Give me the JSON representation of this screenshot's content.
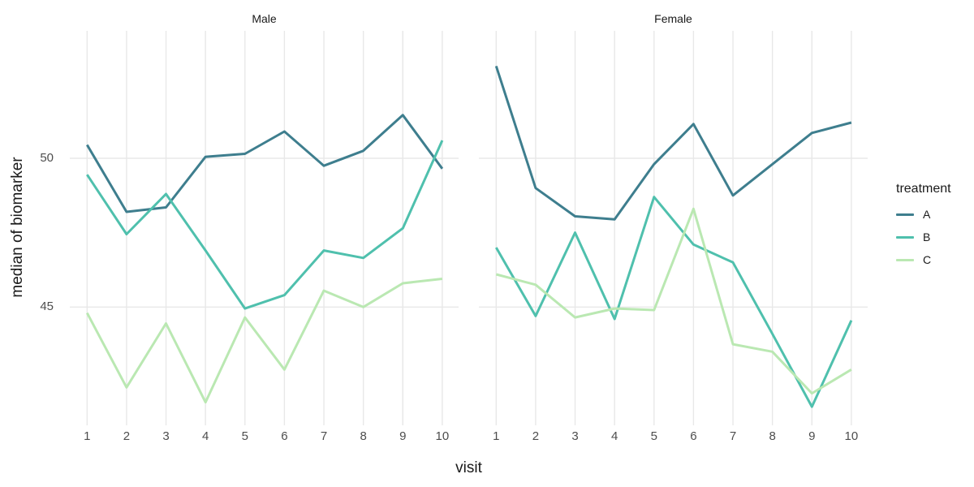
{
  "chart_data": {
    "type": "line",
    "x": [
      1,
      2,
      3,
      4,
      5,
      6,
      7,
      8,
      9,
      10
    ],
    "xlabel": "visit",
    "ylabel": "median of biomarker",
    "yticks": [
      45,
      50
    ],
    "ylim": [
      41.0,
      54.3
    ],
    "grid": true,
    "legend": {
      "title": "treatment",
      "position": "right",
      "entries": [
        "A",
        "B",
        "C"
      ]
    },
    "series_colors": {
      "A": "#3e7e8e",
      "B": "#4fc0ad",
      "C": "#bae8b2"
    },
    "grid_color": "#e8e8e8",
    "facets": [
      {
        "label": "Male",
        "series": [
          {
            "name": "A",
            "values": [
              50.45,
              48.2,
              48.35,
              50.05,
              50.15,
              50.9,
              49.75,
              50.25,
              51.45,
              49.65
            ]
          },
          {
            "name": "B",
            "values": [
              49.45,
              47.45,
              48.8,
              46.9,
              44.95,
              45.4,
              46.9,
              46.65,
              47.65,
              50.6
            ]
          },
          {
            "name": "C",
            "values": [
              44.8,
              42.3,
              44.45,
              41.8,
              44.65,
              42.9,
              45.55,
              45.0,
              45.8,
              45.95
            ]
          }
        ]
      },
      {
        "label": "Female",
        "series": [
          {
            "name": "A",
            "values": [
              53.1,
              49.0,
              48.05,
              47.95,
              49.8,
              51.15,
              48.75,
              49.8,
              50.85,
              51.2
            ]
          },
          {
            "name": "B",
            "values": [
              47.0,
              44.7,
              47.5,
              44.6,
              48.7,
              47.1,
              46.5,
              44.1,
              41.65,
              44.55
            ]
          },
          {
            "name": "C",
            "values": [
              46.1,
              45.75,
              44.65,
              44.95,
              44.9,
              48.3,
              43.75,
              43.5,
              42.1,
              42.9
            ]
          }
        ]
      }
    ]
  }
}
